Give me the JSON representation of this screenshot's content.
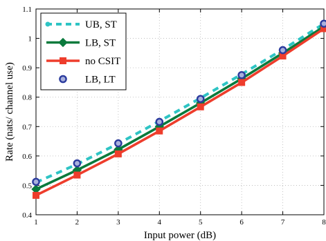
{
  "chart_data": {
    "type": "line",
    "title": "",
    "xlabel": "Input power (dB)",
    "ylabel": "Rate (nats/ channel use)",
    "xlim": [
      1,
      8
    ],
    "ylim": [
      0.4,
      1.1
    ],
    "xticks": [
      "1",
      "2",
      "3",
      "4",
      "5",
      "6",
      "7",
      "8"
    ],
    "yticks": [
      "0.4",
      "0.5",
      "0.6",
      "0.7",
      "0.8",
      "0.9",
      "1",
      "1.1"
    ],
    "grid": true,
    "legend_position": "top-left",
    "x": [
      1,
      2,
      3,
      4,
      5,
      6,
      7,
      8
    ],
    "series": [
      {
        "name": "UB, ST",
        "color": "#2ec4c4",
        "line": "dashed",
        "marker": "none",
        "values": [
          0.51,
          0.572,
          0.642,
          0.718,
          0.797,
          0.878,
          0.962,
          1.05
        ]
      },
      {
        "name": "LB, ST",
        "color": "#0a7a3c",
        "line": "solid",
        "marker": "diamond",
        "values": [
          0.487,
          0.552,
          0.622,
          0.7,
          0.78,
          0.863,
          0.95,
          1.04
        ]
      },
      {
        "name": "no CSIT",
        "color": "#ee3d2c",
        "line": "solid",
        "marker": "square",
        "values": [
          0.466,
          0.535,
          0.607,
          0.685,
          0.767,
          0.85,
          0.94,
          1.033
        ]
      },
      {
        "name": "LB, LT",
        "color": "#2b3b9e",
        "line": "none",
        "marker": "circle",
        "values": [
          0.512,
          0.575,
          0.643,
          0.716,
          0.794,
          0.875,
          0.96,
          1.05
        ]
      }
    ]
  }
}
